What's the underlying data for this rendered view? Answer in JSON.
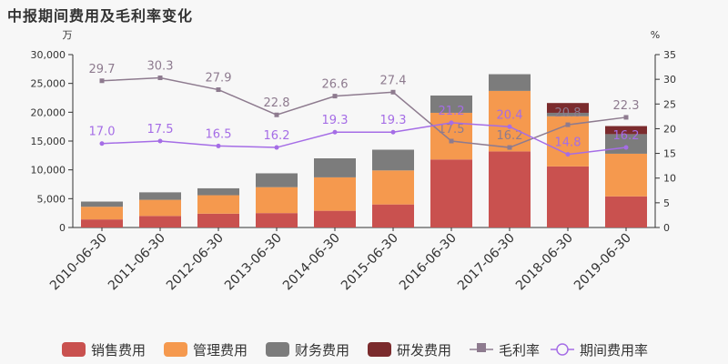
{
  "title": "中报期间费用及毛利率变化",
  "chart_data": {
    "type": "bar",
    "title": "中报期间费用及毛利率变化",
    "categories": [
      "2010-06-30",
      "2011-06-30",
      "2012-06-30",
      "2013-06-30",
      "2014-06-30",
      "2015-06-30",
      "2016-06-30",
      "2017-06-30",
      "2018-06-30",
      "2019-06-30"
    ],
    "left_unit": "万",
    "right_unit": "%",
    "ylim_left": [
      0,
      30000
    ],
    "yticks_left": [
      "0",
      "5,000",
      "10,000",
      "15,000",
      "20,000",
      "25,000",
      "30,000"
    ],
    "ylim_right": [
      0,
      35
    ],
    "yticks_right": [
      "0",
      "5",
      "10",
      "15",
      "20",
      "25",
      "30",
      "35"
    ],
    "stacked": true,
    "series": [
      {
        "name": "销售费用",
        "color": "#c9514f",
        "axis": "left",
        "values": [
          1400,
          2000,
          2400,
          2500,
          2900,
          4000,
          11800,
          13200,
          10600,
          5400
        ]
      },
      {
        "name": "管理费用",
        "color": "#f5994e",
        "axis": "left",
        "values": [
          2200,
          2800,
          3200,
          4500,
          5800,
          5900,
          8100,
          10500,
          8700,
          7400
        ]
      },
      {
        "name": "财务费用",
        "color": "#7c7c7c",
        "axis": "left",
        "values": [
          900,
          1300,
          1200,
          2400,
          3300,
          3600,
          3000,
          2900,
          600,
          3400
        ]
      },
      {
        "name": "研发费用",
        "color": "#7b2b2d",
        "axis": "left",
        "values": [
          0,
          0,
          0,
          0,
          0,
          0,
          0,
          0,
          1700,
          1400
        ]
      }
    ],
    "lines": [
      {
        "name": "毛利率",
        "color": "#8e7b8f",
        "marker": "square",
        "values": [
          29.7,
          30.3,
          27.9,
          22.8,
          26.6,
          27.4,
          17.5,
          16.2,
          20.8,
          22.3
        ]
      },
      {
        "name": "期间费用率",
        "color": "#a56de6",
        "marker": "circle",
        "values": [
          17.0,
          17.5,
          16.5,
          16.2,
          19.3,
          19.3,
          21.2,
          20.4,
          14.8,
          16.2
        ]
      }
    ],
    "legend_position": "bottom"
  }
}
